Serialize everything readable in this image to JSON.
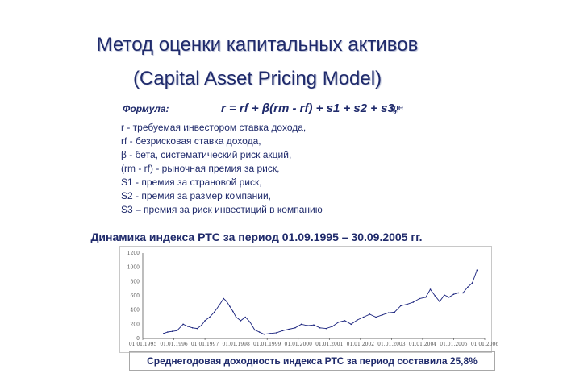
{
  "slide": {
    "title_line1": "Метод оценки капитальных активов",
    "title_line2": "(Capital Asset Pricing Model)",
    "formula_label": "Формула:",
    "formula": "r = rf + β(rm - rf) + s1 + s2 + s3,",
    "formula_suffix": "где",
    "definitions": [
      "r - требуемая инвестором ставка дохода,",
      "rf - безрисковая ставка дохода,",
      "β - бета, систематический риск акций,",
      "(rm - rf) - рыночная премия за риск,",
      "S1 - премия за страновой риск,",
      "S2 - премия за размер компании,",
      "S3 – премия за риск инвестиций в компанию"
    ],
    "chart_title": "Динамика индекса РТС за период 01.09.1995 – 30.09.2005 гг.",
    "footer": "Среднегодовая доходность индекса РТС за период составила 25,8%",
    "colors": {
      "text": "#1f2a6b",
      "series": "#1a237e"
    }
  },
  "chart_data": {
    "type": "line",
    "title": "",
    "xlabel": "",
    "ylabel": "",
    "ylim": [
      0,
      1200
    ],
    "yticks": [
      0,
      200,
      400,
      600,
      800,
      1000,
      1200
    ],
    "xticks": [
      "01.01.1995",
      "01.01.1996",
      "01.01.1997",
      "01.01.1998",
      "01.01.1999",
      "01.01.2000",
      "01.01.2001",
      "01.01.2002",
      "01.01.2003",
      "01.01.2004",
      "01.01.2005",
      "01.01.2006"
    ],
    "grid": false,
    "series": [
      {
        "name": "",
        "x": [
          1995.67,
          1995.8,
          1995.95,
          1996.1,
          1996.3,
          1996.45,
          1996.6,
          1996.75,
          1996.9,
          1997.0,
          1997.15,
          1997.3,
          1997.45,
          1997.6,
          1997.7,
          1997.8,
          1997.9,
          1998.0,
          1998.15,
          1998.3,
          1998.45,
          1998.6,
          1998.75,
          1998.9,
          1999.1,
          1999.3,
          1999.5,
          1999.7,
          1999.9,
          2000.1,
          2000.3,
          2000.5,
          2000.7,
          2000.9,
          2001.1,
          2001.3,
          2001.5,
          2001.7,
          2001.9,
          2002.1,
          2002.3,
          2002.5,
          2002.7,
          2002.9,
          2003.1,
          2003.3,
          2003.5,
          2003.7,
          2003.9,
          2004.1,
          2004.25,
          2004.4,
          2004.55,
          2004.7,
          2004.85,
          2005.0,
          2005.15,
          2005.3,
          2005.45,
          2005.6,
          2005.75
        ],
        "values": [
          70,
          90,
          100,
          110,
          200,
          170,
          150,
          140,
          190,
          250,
          300,
          370,
          460,
          560,
          520,
          450,
          380,
          300,
          250,
          300,
          230,
          120,
          90,
          60,
          70,
          80,
          110,
          130,
          150,
          200,
          180,
          190,
          150,
          140,
          170,
          230,
          250,
          200,
          260,
          300,
          340,
          300,
          330,
          360,
          370,
          460,
          480,
          510,
          560,
          580,
          690,
          600,
          520,
          610,
          580,
          620,
          640,
          640,
          720,
          780,
          960
        ]
      }
    ]
  }
}
